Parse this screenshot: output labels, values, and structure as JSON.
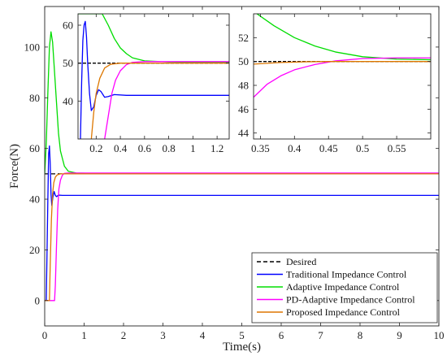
{
  "chart_data": [
    {
      "id": "main",
      "type": "line",
      "xlabel": "Time(s)",
      "ylabel": "Force(N)",
      "xlim": [
        0,
        10
      ],
      "ylim": [
        -10,
        116
      ],
      "xticks": [
        0,
        1,
        2,
        3,
        4,
        5,
        6,
        7,
        8,
        9,
        10
      ],
      "yticks": [
        0,
        20,
        40,
        60,
        80,
        100
      ],
      "legend_position": "bottom-right",
      "legend": [
        "Desired",
        "Traditional Impedance Control",
        "Adaptive Impedance Control",
        "PD-Adaptive Impedance Control",
        "Proposed Impedance Control"
      ],
      "series": [
        {
          "name": "Desired",
          "color": "#000000",
          "dash": "5,3",
          "points": [
            [
              0,
              50
            ],
            [
              10,
              50
            ]
          ]
        },
        {
          "name": "Traditional Impedance Control",
          "color": "#0000ff",
          "points": [
            [
              0,
              0
            ],
            [
              0.04,
              0
            ],
            [
              0.08,
              40
            ],
            [
              0.1,
              58
            ],
            [
              0.12,
              61
            ],
            [
              0.14,
              54
            ],
            [
              0.16,
              42
            ],
            [
              0.18,
              37.5
            ],
            [
              0.21,
              41
            ],
            [
              0.24,
              43
            ],
            [
              0.27,
              41.5
            ],
            [
              0.3,
              41
            ],
            [
              0.35,
              41.6
            ],
            [
              0.45,
              41.5
            ],
            [
              10,
              41.5
            ]
          ]
        },
        {
          "name": "Adaptive Impedance Control",
          "color": "#00dd00",
          "points": [
            [
              0,
              50
            ],
            [
              0.04,
              62
            ],
            [
              0.08,
              82
            ],
            [
              0.12,
              100
            ],
            [
              0.16,
              106
            ],
            [
              0.2,
              102
            ],
            [
              0.25,
              90
            ],
            [
              0.3,
              78
            ],
            [
              0.35,
              66
            ],
            [
              0.4,
              59
            ],
            [
              0.5,
              53
            ],
            [
              0.6,
              51
            ],
            [
              0.8,
              50.3
            ],
            [
              1.2,
              50.2
            ],
            [
              10,
              50.2
            ]
          ]
        },
        {
          "name": "PD-Adaptive Impedance Control",
          "color": "#ff00ff",
          "points": [
            [
              0,
              0
            ],
            [
              0.25,
              0
            ],
            [
              0.27,
              6
            ],
            [
              0.3,
              22
            ],
            [
              0.33,
              36
            ],
            [
              0.36,
              44
            ],
            [
              0.4,
              47.5
            ],
            [
              0.45,
              49.5
            ],
            [
              0.5,
              50.2
            ],
            [
              0.6,
              50.3
            ],
            [
              10,
              50.3
            ]
          ]
        },
        {
          "name": "Proposed Impedance Control",
          "color": "#dd7700",
          "points": [
            [
              0,
              0
            ],
            [
              0.12,
              0
            ],
            [
              0.14,
              14
            ],
            [
              0.17,
              32
            ],
            [
              0.2,
              42
            ],
            [
              0.23,
              46.5
            ],
            [
              0.27,
              48.7
            ],
            [
              0.32,
              49.6
            ],
            [
              0.4,
              50
            ],
            [
              10,
              50
            ]
          ]
        }
      ]
    },
    {
      "id": "inset-1",
      "type": "line",
      "xlim": [
        0.05,
        1.3
      ],
      "ylim": [
        30,
        63
      ],
      "xticks": [
        0.2,
        0.4,
        0.6,
        0.8,
        1,
        1.2
      ],
      "yticks": [
        40,
        50,
        60
      ],
      "series": [
        {
          "name": "Desired",
          "color": "#000000",
          "dash": "4,2",
          "points": [
            [
              0.05,
              50
            ],
            [
              1.3,
              50
            ]
          ]
        },
        {
          "name": "Traditional Impedance Control",
          "color": "#0000ff",
          "points": [
            [
              0.07,
              30
            ],
            [
              0.08,
              45
            ],
            [
              0.09,
              56
            ],
            [
              0.1,
              60
            ],
            [
              0.11,
              61
            ],
            [
              0.12,
              57
            ],
            [
              0.13,
              50
            ],
            [
              0.145,
              42
            ],
            [
              0.16,
              37.5
            ],
            [
              0.18,
              38.5
            ],
            [
              0.2,
              41.5
            ],
            [
              0.22,
              43
            ],
            [
              0.24,
              42.5
            ],
            [
              0.27,
              41
            ],
            [
              0.3,
              41.2
            ],
            [
              0.35,
              41.7
            ],
            [
              0.45,
              41.5
            ],
            [
              1.3,
              41.5
            ]
          ]
        },
        {
          "name": "Adaptive Impedance Control",
          "color": "#00dd00",
          "points": [
            [
              0.05,
              63
            ],
            [
              0.25,
              63
            ],
            [
              0.3,
              60
            ],
            [
              0.35,
              56.5
            ],
            [
              0.4,
              54
            ],
            [
              0.45,
              52.5
            ],
            [
              0.5,
              51.4
            ],
            [
              0.6,
              50.6
            ],
            [
              0.8,
              50.3
            ],
            [
              1.3,
              50.2
            ]
          ]
        },
        {
          "name": "PD-Adaptive Impedance Control",
          "color": "#ff00ff",
          "points": [
            [
              0.27,
              30
            ],
            [
              0.3,
              36
            ],
            [
              0.33,
              42
            ],
            [
              0.36,
              45.5
            ],
            [
              0.4,
              48
            ],
            [
              0.45,
              49.6
            ],
            [
              0.5,
              50.2
            ],
            [
              0.6,
              50.4
            ],
            [
              1.3,
              50.4
            ]
          ]
        },
        {
          "name": "Proposed Impedance Control",
          "color": "#dd7700",
          "points": [
            [
              0.16,
              30
            ],
            [
              0.18,
              37
            ],
            [
              0.2,
              42
            ],
            [
              0.23,
              46
            ],
            [
              0.27,
              48.7
            ],
            [
              0.32,
              49.7
            ],
            [
              0.4,
              50
            ],
            [
              1.3,
              50
            ]
          ]
        }
      ]
    },
    {
      "id": "inset-2",
      "type": "line",
      "xlim": [
        0.34,
        0.6
      ],
      "ylim": [
        43.5,
        54
      ],
      "xticks": [
        0.35,
        0.4,
        0.45,
        0.5,
        0.55
      ],
      "yticks": [
        44,
        46,
        48,
        50,
        52
      ],
      "series": [
        {
          "name": "Desired",
          "color": "#000000",
          "dash": "4,2",
          "points": [
            [
              0.34,
              50
            ],
            [
              0.6,
              50
            ]
          ]
        },
        {
          "name": "Adaptive Impedance Control",
          "color": "#00dd00",
          "points": [
            [
              0.345,
              54
            ],
            [
              0.37,
              53
            ],
            [
              0.4,
              52
            ],
            [
              0.43,
              51.3
            ],
            [
              0.46,
              50.8
            ],
            [
              0.5,
              50.4
            ],
            [
              0.55,
              50.2
            ],
            [
              0.6,
              50.15
            ]
          ]
        },
        {
          "name": "PD-Adaptive Impedance Control",
          "color": "#ff00ff",
          "points": [
            [
              0.34,
              47
            ],
            [
              0.36,
              48.1
            ],
            [
              0.38,
              48.8
            ],
            [
              0.4,
              49.3
            ],
            [
              0.43,
              49.75
            ],
            [
              0.46,
              50.05
            ],
            [
              0.5,
              50.25
            ],
            [
              0.55,
              50.3
            ],
            [
              0.6,
              50.3
            ]
          ]
        },
        {
          "name": "Proposed Impedance Control",
          "color": "#dd7700",
          "points": [
            [
              0.34,
              49.78
            ],
            [
              0.38,
              49.92
            ],
            [
              0.42,
              49.98
            ],
            [
              0.45,
              50.0
            ],
            [
              0.6,
              50.0
            ]
          ]
        }
      ]
    }
  ]
}
